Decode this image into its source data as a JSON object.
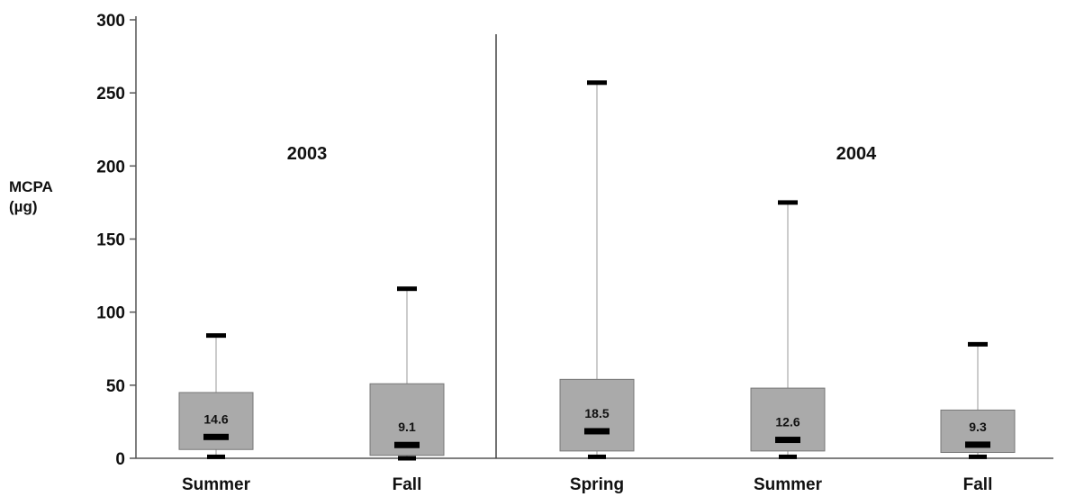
{
  "chart_data": {
    "type": "boxplot",
    "ylabel_line1": "MCPA",
    "ylabel_line2": "(µg)",
    "ylim": [
      0,
      300
    ],
    "yticks": [
      0,
      50,
      100,
      150,
      200,
      250,
      300
    ],
    "groups": [
      {
        "label": "2003",
        "categories": [
          "Summer",
          "Fall"
        ]
      },
      {
        "label": "2004",
        "categories": [
          "Spring",
          "Summer",
          "Fall"
        ]
      }
    ],
    "boxes": [
      {
        "group": "2003",
        "category": "Summer",
        "min": 1,
        "q1": 6,
        "median": 14.6,
        "q3": 45,
        "max": 84,
        "median_label": "14.6"
      },
      {
        "group": "2003",
        "category": "Fall",
        "min": 0,
        "q1": 2,
        "median": 9.1,
        "q3": 51,
        "max": 116,
        "median_label": "9.1"
      },
      {
        "group": "2004",
        "category": "Spring",
        "min": 1,
        "q1": 5,
        "median": 18.5,
        "q3": 54,
        "max": 257,
        "median_label": "18.5"
      },
      {
        "group": "2004",
        "category": "Summer",
        "min": 1,
        "q1": 5,
        "median": 12.6,
        "q3": 48,
        "max": 175,
        "median_label": "12.6"
      },
      {
        "group": "2004",
        "category": "Fall",
        "min": 1,
        "q1": 4,
        "median": 9.3,
        "q3": 33,
        "max": 78,
        "median_label": "9.3"
      }
    ],
    "colors": {
      "box_fill": "#aaaaaa",
      "box_stroke": "#777777",
      "whisker": "#999999",
      "marker": "#000000",
      "axis": "#555555"
    }
  }
}
